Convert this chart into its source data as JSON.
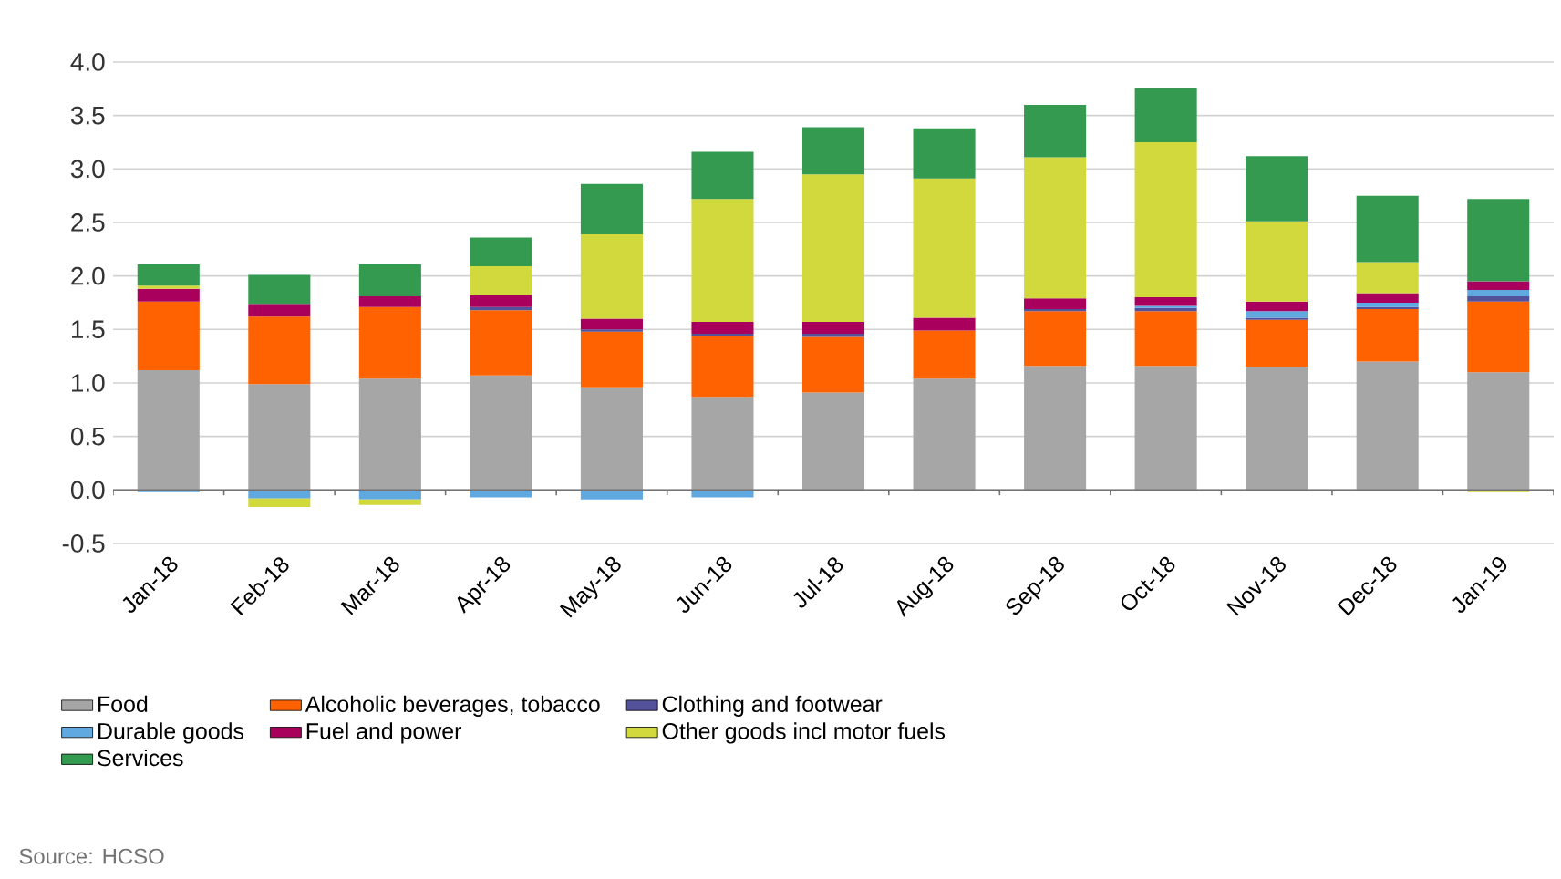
{
  "chart_data": {
    "type": "bar",
    "stacked": true,
    "categories": [
      "Jan-18",
      "Feb-18",
      "Mar-18",
      "Apr-18",
      "May-18",
      "Jun-18",
      "Jul-18",
      "Aug-18",
      "Sep-18",
      "Oct-18",
      "Nov-18",
      "Dec-18",
      "Jan-19"
    ],
    "series": [
      {
        "name": "Food",
        "color": "#a6a6a6",
        "values": [
          1.12,
          0.99,
          1.04,
          1.07,
          0.96,
          0.87,
          0.91,
          1.04,
          1.16,
          1.16,
          1.15,
          1.2,
          1.1
        ]
      },
      {
        "name": "Alcoholic beverages, tobacco",
        "color": "#ff6200",
        "values": [
          0.64,
          0.63,
          0.67,
          0.61,
          0.52,
          0.57,
          0.52,
          0.45,
          0.51,
          0.51,
          0.44,
          0.49,
          0.66
        ]
      },
      {
        "name": "Clothing and footwear",
        "color": "#525199",
        "values": [
          0,
          0,
          0,
          0.03,
          0.02,
          0.02,
          0.03,
          0,
          0.02,
          0.03,
          0.02,
          0.02,
          0.05
        ]
      },
      {
        "name": "Durable goods",
        "color": "#60a9e0",
        "values": [
          -0.02,
          -0.08,
          -0.09,
          -0.07,
          -0.09,
          -0.07,
          null,
          null,
          null,
          0.02,
          0.06,
          0.04,
          0.06
        ]
      },
      {
        "name": "Fuel and power",
        "color": "#a8005c",
        "values": [
          0.12,
          0.12,
          0.1,
          0.11,
          0.1,
          0.11,
          0.11,
          0.12,
          0.1,
          0.08,
          0.09,
          0.09,
          0.08
        ]
      },
      {
        "name": "Other goods incl motor fuels",
        "color": "#d1d93c",
        "values": [
          0.03,
          -0.08,
          -0.05,
          0.27,
          0.79,
          1.15,
          1.38,
          1.3,
          1.32,
          1.45,
          0.75,
          0.29,
          -0.02
        ]
      },
      {
        "name": "Services",
        "color": "#349a50",
        "values": [
          0.2,
          0.27,
          0.3,
          0.27,
          0.47,
          0.44,
          0.44,
          0.47,
          0.49,
          0.51,
          0.61,
          0.62,
          0.77
        ]
      }
    ],
    "ylim": [
      -0.5,
      4.0
    ],
    "yticks": [
      -0.5,
      {
        "value": 0,
        "label": "0.0"
      },
      0.5,
      {
        "value": 1,
        "label": "1.0"
      },
      1.5,
      {
        "value": 2,
        "label": "2.0"
      },
      2.5,
      {
        "value": 3,
        "label": "3.0"
      },
      3.5,
      {
        "value": 4,
        "label": "4.0"
      }
    ],
    "grid": "y",
    "legend": "bottom",
    "annotations": [
      "Source: HCSO"
    ]
  }
}
